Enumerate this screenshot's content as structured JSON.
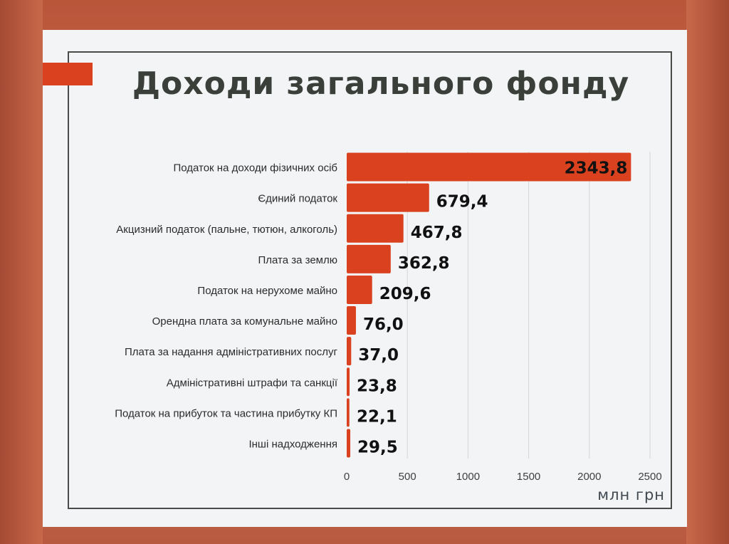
{
  "title": "Доходи загального фонду",
  "chart_data": {
    "type": "bar",
    "orientation": "horizontal",
    "title": "Доходи загального фонду",
    "xlabel": "млн грн",
    "ylabel": "",
    "xlim": [
      0,
      2500
    ],
    "xticks": [
      0,
      500,
      1000,
      1500,
      2000,
      2500
    ],
    "grid": true,
    "categories": [
      "Податок на доходи фізичних осіб",
      "Єдиний податок",
      "Акцизний податок (пальне, тютюн, алкоголь)",
      "Плата за землю",
      "Податок на нерухоме майно",
      "Орендна плата за комунальне майно",
      "Плата за надання адміністративних послуг",
      "Адміністративні штрафи та санкції",
      "Податок на прибуток та частина прибутку КП",
      "Інші надходження"
    ],
    "values": [
      2343.8,
      679.4,
      467.8,
      362.8,
      209.6,
      76.0,
      37.0,
      23.8,
      22.1,
      29.5
    ],
    "data_labels": [
      "2343,8",
      "679,4",
      "467,8",
      "362,8",
      "209,6",
      "76,0",
      "37,0",
      "23,8",
      "22,1",
      "29,5"
    ],
    "bar_color": "#d9411f"
  }
}
